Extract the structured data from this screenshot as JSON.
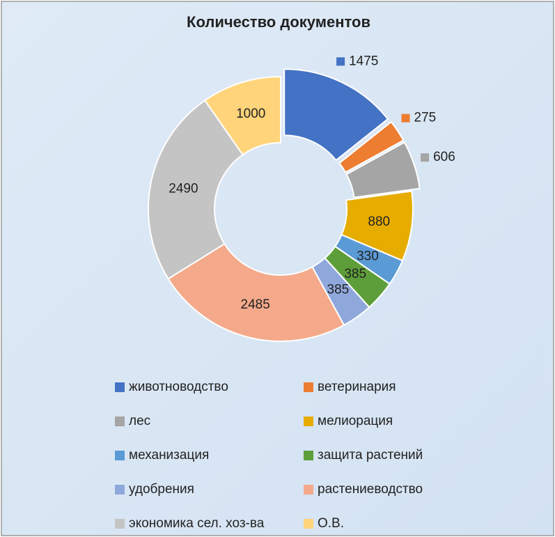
{
  "chart_data": {
    "type": "donut",
    "title": "Количество документов",
    "categories": [
      "животноводство",
      "ветеринария",
      "лес",
      "мелиорация",
      "механизация",
      "защита растений",
      "удобрения",
      "растениеводство",
      "экономика сел. хоз-ва",
      "О.В."
    ],
    "values": [
      1475,
      275,
      606,
      880,
      330,
      385,
      385,
      2485,
      2490,
      1000
    ],
    "colors": [
      "#4472c4",
      "#ed7d31",
      "#a5a5a5",
      "#e6ac00",
      "#5b9bd5",
      "#5e9e3a",
      "#8fa8dc",
      "#f4a98a",
      "#c4c4c4",
      "#ffd47a"
    ],
    "legend": "bottom"
  }
}
